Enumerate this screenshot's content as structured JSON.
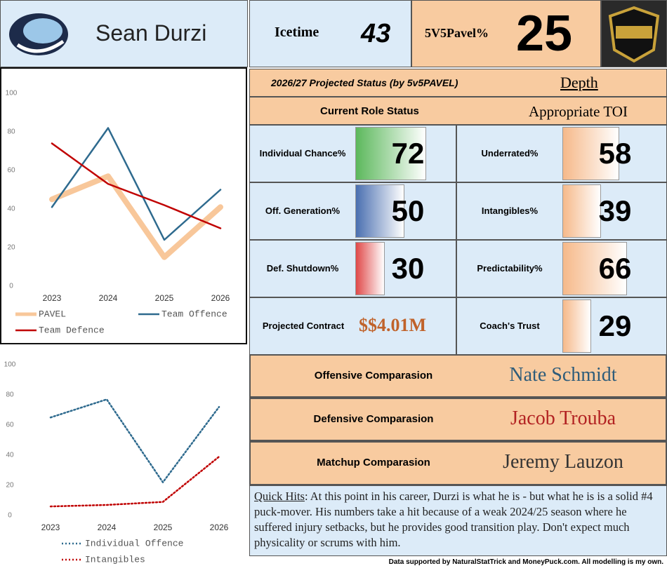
{
  "header": {
    "name": "Sean Durzi",
    "icetime_label": "Icetime",
    "icetime": 43,
    "pavel_label": "5V5Pavel%",
    "pavel": 25
  },
  "projection": {
    "label": "2026/27 Projected Status (by 5v5PAVEL)",
    "value": "Depth"
  },
  "role": {
    "label": "Current Role Status",
    "value": "Appropriate TOI"
  },
  "metrics": [
    {
      "label": "Individual Chance%",
      "value": 72,
      "color": "#5cb85c"
    },
    {
      "label": "Underrated%",
      "value": 58,
      "color": "#f6b98a"
    },
    {
      "label": "Off. Generation%",
      "value": 50,
      "color": "#4a6fb0"
    },
    {
      "label": "Intangibles%",
      "value": 39,
      "color": "#f6b98a"
    },
    {
      "label": "Def. Shutdown%",
      "value": 30,
      "color": "#e04848"
    },
    {
      "label": "Predictability%",
      "value": 66,
      "color": "#f6b98a"
    }
  ],
  "contract": {
    "label": "Projected Contract",
    "value": "$$4.01M"
  },
  "trust": {
    "label": "Coach's Trust",
    "value": 29,
    "color": "#f6b98a"
  },
  "comparisons": [
    {
      "label": "Offensive Comparasion",
      "value": "Nate Schmidt",
      "color": "#2e5c7a"
    },
    {
      "label": "Defensive Comparasion",
      "value": "Jacob Trouba",
      "color": "#b22222"
    },
    {
      "label": "Matchup Comparasion",
      "value": "Jeremy Lauzon",
      "color": "#333333"
    }
  ],
  "quick_hits": {
    "label": "Quick Hits",
    "text": ": At this point in his career, Durzi is what he is - but what he is is a solid #4 puck-mover. His numbers take a hit because of a weak 2024/25 season where he suffered injury setbacks, but he provides good transition play. Don't expect much physicality or scrums with him."
  },
  "footer": "Data supported by NaturalStatTrick and MoneyPuck.com. All modelling is my own.",
  "chart_data": [
    {
      "type": "line",
      "categories": [
        "2023",
        "2024",
        "2025",
        "2026"
      ],
      "ylim": [
        0,
        100
      ],
      "yticks": [
        0,
        20,
        40,
        60,
        80,
        100
      ],
      "legend": "bottom",
      "series": [
        {
          "name": "PAVEL",
          "color": "#f8c79a",
          "width": 8,
          "dash": "solid",
          "values": [
            45,
            57,
            15,
            41
          ]
        },
        {
          "name": "Team Offence",
          "color": "#2e6a8e",
          "width": 2.5,
          "dash": "solid",
          "values": [
            41,
            82,
            24,
            50
          ]
        },
        {
          "name": "Team Defence",
          "color": "#c00000",
          "width": 2.5,
          "dash": "solid",
          "values": [
            74,
            53,
            42,
            30
          ]
        }
      ]
    },
    {
      "type": "line",
      "categories": [
        "2023",
        "2024",
        "2025",
        "2026"
      ],
      "ylim": [
        0,
        100
      ],
      "yticks": [
        0,
        20,
        40,
        60,
        80,
        100
      ],
      "legend": "bottom",
      "series": [
        {
          "name": "Individual Offence",
          "color": "#2e6a8e",
          "width": 2.5,
          "dash": "dotted",
          "values": [
            65,
            77,
            22,
            72
          ]
        },
        {
          "name": "Intangibles",
          "color": "#c00000",
          "width": 2.5,
          "dash": "dotted",
          "values": [
            6,
            7,
            9,
            39
          ]
        }
      ]
    }
  ]
}
